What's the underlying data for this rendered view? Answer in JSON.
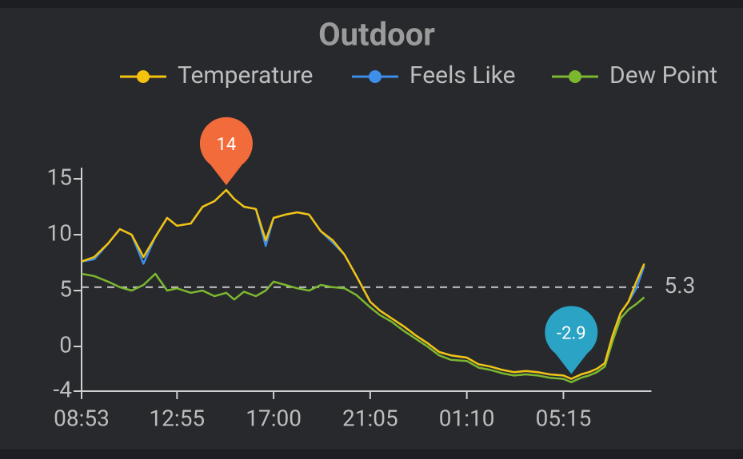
{
  "chart_data": {
    "type": "line",
    "title": "Outdoor",
    "x": [
      "08:53",
      "09:25",
      "10:00",
      "10:30",
      "11:00",
      "11:30",
      "12:00",
      "12:30",
      "12:55",
      "13:30",
      "14:00",
      "14:30",
      "15:00",
      "15:20",
      "15:45",
      "16:15",
      "16:40",
      "17:00",
      "17:30",
      "18:00",
      "18:30",
      "19:00",
      "19:30",
      "20:00",
      "20:30",
      "21:05",
      "21:30",
      "22:00",
      "22:30",
      "23:00",
      "23:30",
      "00:00",
      "00:30",
      "01:10",
      "01:40",
      "02:10",
      "02:40",
      "03:10",
      "03:40",
      "04:10",
      "04:40",
      "05:15",
      "05:35",
      "06:00",
      "06:20",
      "06:40",
      "07:00",
      "07:20",
      "07:40",
      "08:00",
      "08:20",
      "08:40"
    ],
    "series": [
      {
        "name": "Temperature",
        "color": "#f4c20d",
        "values": [
          7.6,
          8.0,
          9.2,
          10.5,
          10.0,
          8.0,
          9.8,
          11.5,
          10.8,
          11.0,
          12.5,
          13.0,
          14,
          13.2,
          12.5,
          12.3,
          9.5,
          11.5,
          11.8,
          12.0,
          11.8,
          10.3,
          9.5,
          8.2,
          6.3,
          4.0,
          3.2,
          2.5,
          1.8,
          1.0,
          0.3,
          -0.5,
          -0.8,
          -1.0,
          -1.6,
          -1.8,
          -2.1,
          -2.3,
          -2.2,
          -2.3,
          -2.5,
          -2.6,
          -2.9,
          -2.5,
          -2.3,
          -2.0,
          -1.5,
          1.0,
          3.0,
          4.0,
          5.8,
          7.4
        ]
      },
      {
        "name": "Feels Like",
        "color": "#3d8fe8",
        "values": [
          7.6,
          7.8,
          9.2,
          10.5,
          10.0,
          7.4,
          9.8,
          11.5,
          10.8,
          11.0,
          12.5,
          13.0,
          14,
          13.2,
          12.5,
          12.3,
          9.0,
          11.5,
          11.8,
          12.0,
          11.8,
          10.3,
          9.3,
          8.2,
          6.3,
          4.0,
          3.2,
          2.5,
          1.8,
          1.0,
          0.3,
          -0.5,
          -0.8,
          -1.0,
          -1.6,
          -1.8,
          -2.1,
          -2.3,
          -2.2,
          -2.3,
          -2.5,
          -2.6,
          -2.9,
          -2.5,
          -2.3,
          -2.0,
          -1.5,
          1.0,
          3.0,
          4.0,
          5.2,
          7.2
        ]
      },
      {
        "name": "Dew Point",
        "color": "#7cb82f",
        "values": [
          6.5,
          6.3,
          5.8,
          5.3,
          5.0,
          5.5,
          6.5,
          5.0,
          5.2,
          4.8,
          5.0,
          4.5,
          4.8,
          4.2,
          4.9,
          4.5,
          5.0,
          5.8,
          5.5,
          5.2,
          5.0,
          5.5,
          5.3,
          5.2,
          4.6,
          3.5,
          2.8,
          2.2,
          1.4,
          0.7,
          0.0,
          -0.8,
          -1.2,
          -1.3,
          -1.9,
          -2.1,
          -2.4,
          -2.6,
          -2.5,
          -2.6,
          -2.8,
          -2.9,
          -3.2,
          -2.8,
          -2.6,
          -2.3,
          -1.8,
          0.5,
          2.5,
          3.3,
          3.8,
          4.4
        ]
      }
    ],
    "xticks": [
      "08:53",
      "12:55",
      "17:00",
      "21:05",
      "01:10",
      "05:15"
    ],
    "ylim": [
      -4,
      16
    ],
    "yticks": [
      15,
      10,
      5,
      0,
      -4
    ],
    "reference_line": {
      "value": 5.3
    },
    "annotations": [
      {
        "x": "15:00",
        "value": 14,
        "color": "#f26b3a"
      },
      {
        "x": "05:35",
        "value": -2.9,
        "color": "#2aa3c4"
      }
    ]
  }
}
